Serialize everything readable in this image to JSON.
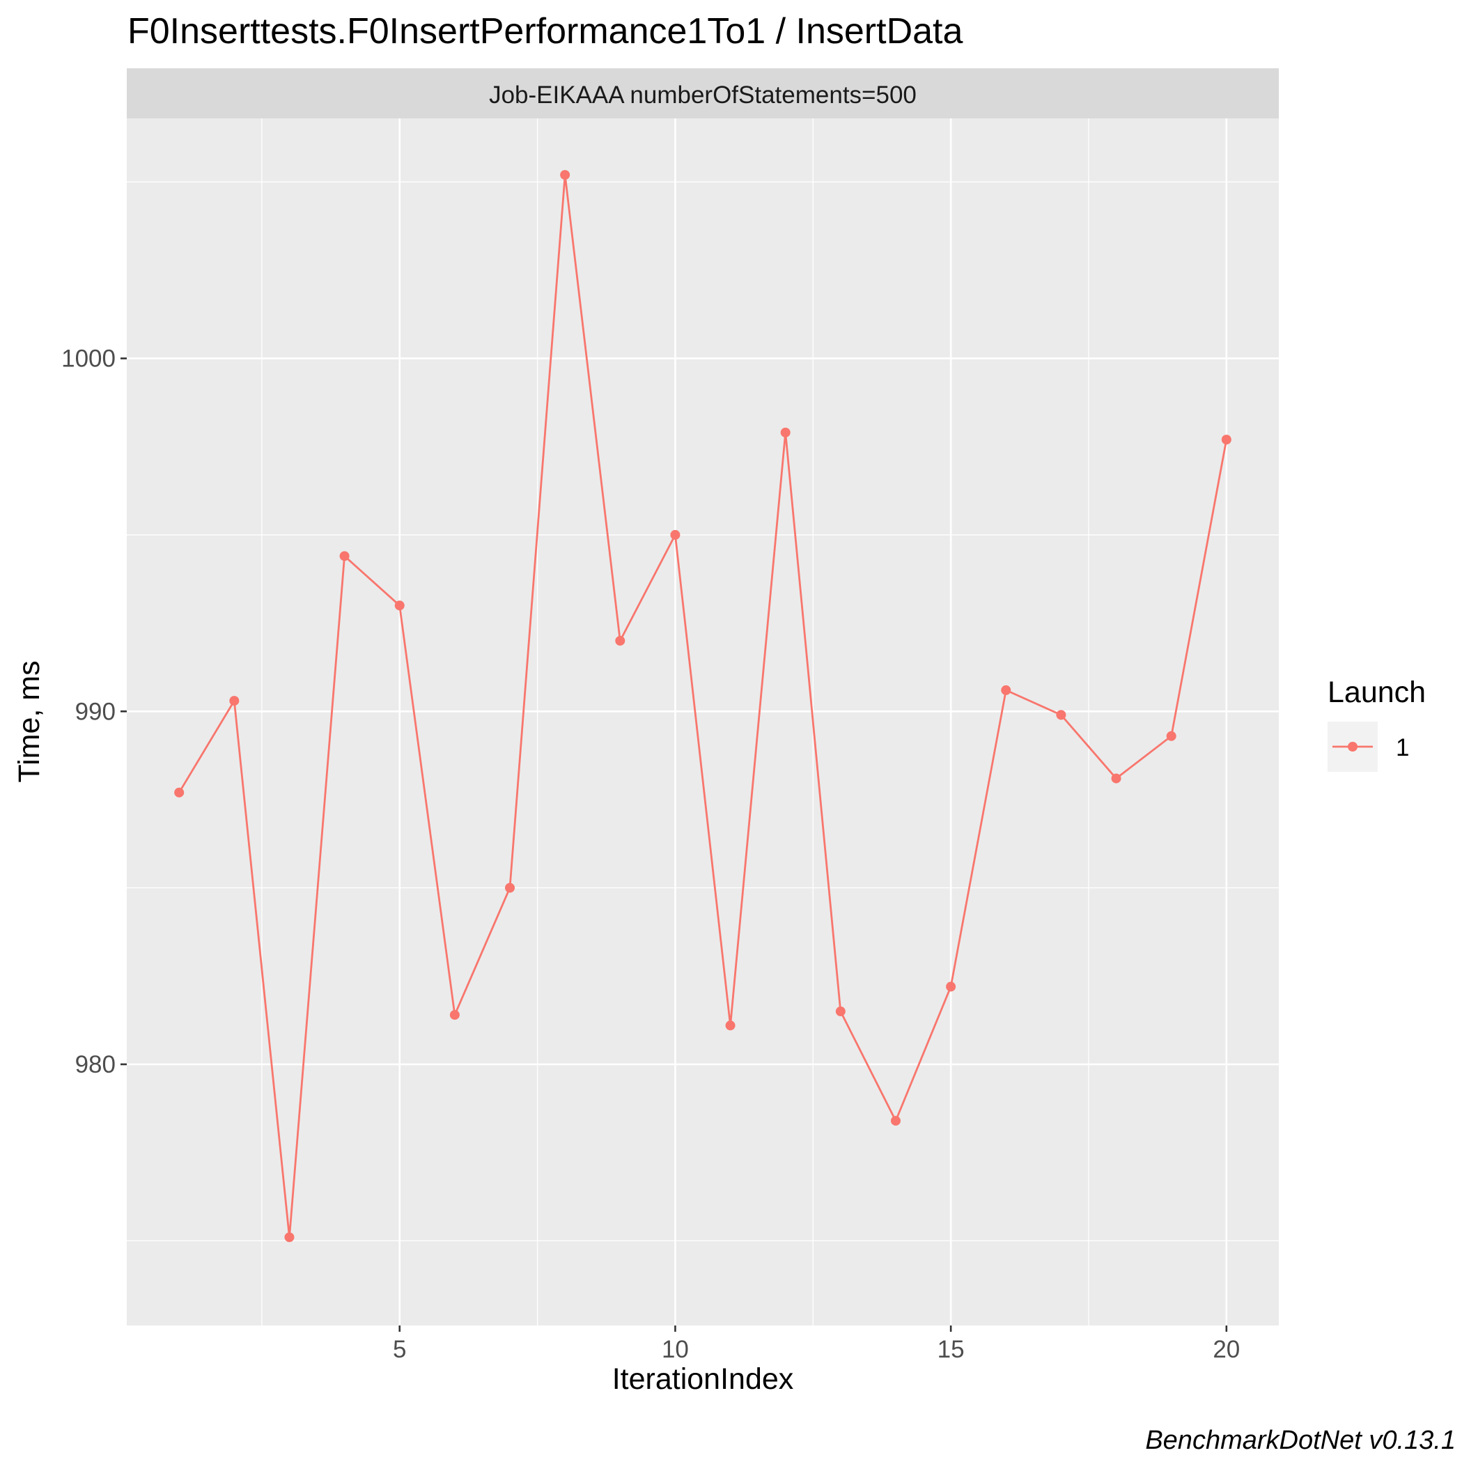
{
  "chart_data": {
    "type": "line",
    "title": "F0Inserttests.F0InsertPerformance1To1 / InsertData",
    "facet_label": "Job-EIKAAA numberOfStatements=500",
    "xlabel": "IterationIndex",
    "ylabel": "Time, ms",
    "caption": "BenchmarkDotNet v0.13.1",
    "xlim": [
      0.05,
      20.95
    ],
    "ylim": [
      972.6,
      1006.8
    ],
    "x_ticks": [
      5,
      10,
      15,
      20
    ],
    "x_tick_labels": [
      "5",
      "10",
      "15",
      "20"
    ],
    "x_minor_ticks": [
      2.5,
      7.5,
      12.5,
      17.5
    ],
    "y_ticks": [
      980,
      990,
      1000
    ],
    "y_tick_labels": [
      "980",
      "990",
      "1000"
    ],
    "y_minor_ticks": [
      975,
      985,
      995,
      1005
    ],
    "grid": true,
    "legend": {
      "title": "Launch",
      "position": "right",
      "entries": [
        "1"
      ]
    },
    "colors": {
      "series": "#F8766D",
      "panel_background": "#EBEBEB",
      "grid": "#FFFFFF",
      "strip_background": "#D9D9D9",
      "legend_key_background": "#F2F2F2"
    },
    "series": [
      {
        "name": "1",
        "x": [
          1,
          2,
          3,
          4,
          5,
          6,
          7,
          8,
          9,
          10,
          11,
          12,
          13,
          14,
          15,
          16,
          17,
          18,
          19,
          20
        ],
        "values": [
          987.7,
          990.3,
          975.1,
          994.4,
          993.0,
          981.4,
          985.0,
          1005.2,
          992.0,
          995.0,
          981.1,
          997.9,
          981.5,
          978.4,
          982.2,
          990.6,
          989.9,
          988.1,
          989.3,
          997.7
        ]
      }
    ]
  }
}
